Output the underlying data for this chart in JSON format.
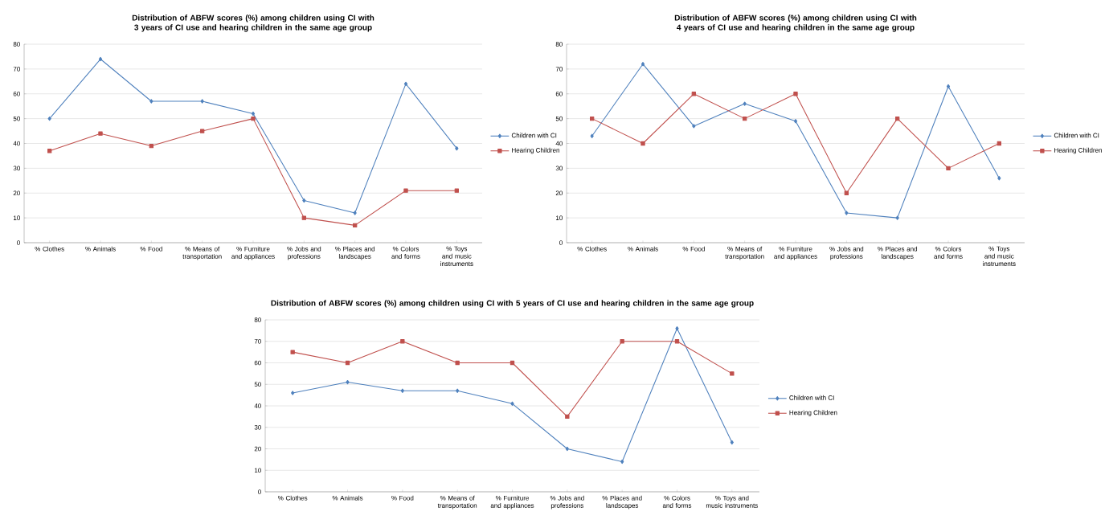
{
  "chart_data": [
    {
      "type": "line",
      "title": "Distribution of ABFW scores (%) among children using CI with 3 years of CI use and  hearing children in the same age group",
      "categories": [
        "% Clothes",
        "% Animals",
        "% Food",
        "% Means of transportation",
        "% Furniture and appliances",
        "% Jobs and professions",
        "% Places and landscapes",
        "% Colors and forms",
        "% Toys and music instruments"
      ],
      "ylim": [
        0,
        80
      ],
      "yticks": [
        0,
        10,
        20,
        30,
        40,
        50,
        60,
        70,
        80
      ],
      "grid": "y",
      "legend": "right",
      "line_style": "solid",
      "series": [
        {
          "name": "Children with CI",
          "color": "#4f81bd",
          "marker": "diamond",
          "values": [
            50,
            74,
            57,
            57,
            52,
            17,
            12,
            64,
            38
          ]
        },
        {
          "name": "Hearing Children",
          "color": "#c0504d",
          "marker": "square",
          "values": [
            37,
            44,
            39,
            45,
            50,
            10,
            7,
            21,
            21
          ]
        }
      ]
    },
    {
      "type": "line",
      "title": "Distribution of ABFW scores (%) among children using CI with 4 years of CI use and  hearing children in the same age group",
      "categories": [
        "% Clothes",
        "% Animals",
        "% Food",
        "% Means of transportation",
        "% Furniture and appliances",
        "% Jobs and professions",
        "% Places and landscapes",
        "% Colors and forms",
        "% Toys and music instruments"
      ],
      "ylim": [
        0,
        80
      ],
      "yticks": [
        0,
        10,
        20,
        30,
        40,
        50,
        60,
        70,
        80
      ],
      "grid": "y",
      "legend": "right",
      "line_style": "solid",
      "series": [
        {
          "name": "Children with CI",
          "color": "#4f81bd",
          "marker": "diamond",
          "values": [
            43,
            72,
            47,
            56,
            49,
            12,
            10,
            63,
            26
          ]
        },
        {
          "name": "Hearing Children",
          "color": "#c0504d",
          "marker": "square",
          "values": [
            50,
            40,
            60,
            50,
            60,
            20,
            50,
            30,
            40
          ]
        }
      ]
    },
    {
      "type": "line",
      "title": "Distribution of ABFW scores (%) among children using CI with 5 years of CI use and  hearing children in the same age group",
      "categories": [
        "% Clothes",
        "% Animals",
        "% Food",
        "% Means of transportation",
        "% Furniture and appliances",
        "% Jobs and professions",
        "% Places and landscapes",
        "% Colors and forms",
        "% Toys and music instruments"
      ],
      "ylim": [
        0,
        80
      ],
      "yticks": [
        0,
        10,
        20,
        30,
        40,
        50,
        60,
        70,
        80
      ],
      "grid": "y",
      "legend": "right",
      "line_style": "solid",
      "series": [
        {
          "name": "Children with CI",
          "color": "#4f81bd",
          "marker": "diamond",
          "values": [
            46,
            51,
            47,
            47,
            41,
            20,
            14,
            76,
            23
          ]
        },
        {
          "name": "Hearing Children",
          "color": "#c0504d",
          "marker": "square",
          "values": [
            65,
            60,
            70,
            60,
            60,
            35,
            70,
            70,
            55
          ]
        }
      ]
    }
  ]
}
